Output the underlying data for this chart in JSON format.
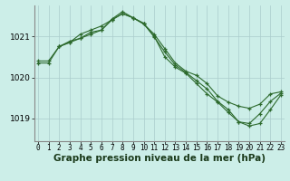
{
  "background_color": "#cceee8",
  "grid_color": "#aacccc",
  "line_color": "#2d6a2d",
  "marker_color": "#2d6a2d",
  "title": "Graphe pression niveau de la mer (hPa)",
  "title_fontsize": 7.5,
  "tick_fontsize": 5.5,
  "ytick_fontsize": 6.5,
  "yticks": [
    1019,
    1020,
    1021
  ],
  "xticks": [
    0,
    1,
    2,
    3,
    4,
    5,
    6,
    7,
    8,
    9,
    10,
    11,
    12,
    13,
    14,
    15,
    16,
    17,
    18,
    19,
    20,
    21,
    22,
    23
  ],
  "xlim": [
    -0.3,
    23.3
  ],
  "ylim": [
    1018.45,
    1021.75
  ],
  "series": [
    {
      "x": [
        0,
        1,
        2,
        3,
        4,
        5,
        6,
        7,
        8,
        9,
        10,
        11,
        12,
        13,
        14,
        15,
        16,
        17,
        18,
        19,
        20,
        21,
        22,
        23
      ],
      "y": [
        1020.35,
        1020.35,
        1020.75,
        1020.85,
        1021.05,
        1021.15,
        1021.25,
        1021.4,
        1021.55,
        1021.45,
        1021.3,
        1021.05,
        1020.7,
        1020.35,
        1020.15,
        1020.05,
        1019.85,
        1019.55,
        1019.4,
        1019.3,
        1019.25,
        1019.35,
        1019.6,
        1019.65
      ]
    },
    {
      "x": [
        0,
        1,
        2,
        3,
        4,
        5,
        6,
        7,
        8,
        9,
        10,
        11,
        12,
        13,
        14,
        15,
        16,
        17,
        18,
        19,
        20,
        21,
        22,
        23
      ],
      "y": [
        1020.4,
        1020.4,
        1020.75,
        1020.85,
        1020.95,
        1021.1,
        1021.15,
        1021.4,
        1021.55,
        1021.45,
        1021.3,
        1021.0,
        1020.5,
        1020.25,
        1020.1,
        1019.85,
        1019.6,
        1019.4,
        1019.15,
        1018.92,
        1018.88,
        1019.12,
        1019.42,
        1019.62
      ]
    },
    {
      "x": [
        2,
        3,
        4,
        5,
        6,
        7,
        8,
        9,
        10,
        11,
        12,
        13,
        14,
        15,
        16,
        17,
        18,
        19,
        20,
        21,
        22,
        23
      ],
      "y": [
        1020.75,
        1020.88,
        1020.95,
        1021.05,
        1021.15,
        1021.42,
        1021.6,
        1021.45,
        1021.32,
        1020.98,
        1020.62,
        1020.3,
        1020.12,
        1019.92,
        1019.72,
        1019.42,
        1019.22,
        1018.92,
        1018.82,
        1018.88,
        1019.22,
        1019.58
      ]
    }
  ]
}
